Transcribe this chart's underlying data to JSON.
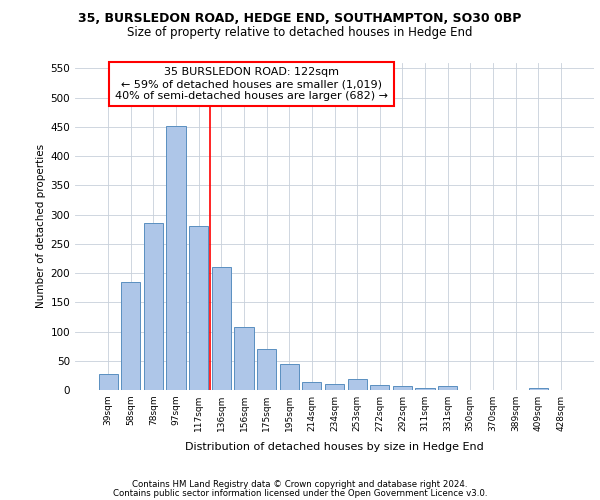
{
  "title1": "35, BURSLEDON ROAD, HEDGE END, SOUTHAMPTON, SO30 0BP",
  "title2": "Size of property relative to detached houses in Hedge End",
  "xlabel": "Distribution of detached houses by size in Hedge End",
  "ylabel": "Number of detached properties",
  "categories": [
    "39sqm",
    "58sqm",
    "78sqm",
    "97sqm",
    "117sqm",
    "136sqm",
    "156sqm",
    "175sqm",
    "195sqm",
    "214sqm",
    "234sqm",
    "253sqm",
    "272sqm",
    "292sqm",
    "311sqm",
    "331sqm",
    "350sqm",
    "370sqm",
    "389sqm",
    "409sqm",
    "428sqm"
  ],
  "values": [
    28,
    184,
    286,
    452,
    281,
    211,
    108,
    70,
    44,
    13,
    10,
    18,
    9,
    6,
    4,
    6,
    0,
    0,
    0,
    4,
    0
  ],
  "bar_color": "#aec6e8",
  "bar_edge_color": "#5a8fc0",
  "grid_color": "#c8d0da",
  "annotation_line1": "35 BURSLEDON ROAD: 122sqm",
  "annotation_line2": "← 59% of detached houses are smaller (1,019)",
  "annotation_line3": "40% of semi-detached houses are larger (682) →",
  "footer1": "Contains HM Land Registry data © Crown copyright and database right 2024.",
  "footer2": "Contains public sector information licensed under the Open Government Licence v3.0.",
  "ylim": [
    0,
    560
  ],
  "yticks": [
    0,
    50,
    100,
    150,
    200,
    250,
    300,
    350,
    400,
    450,
    500,
    550
  ],
  "red_line_x": 4.5
}
